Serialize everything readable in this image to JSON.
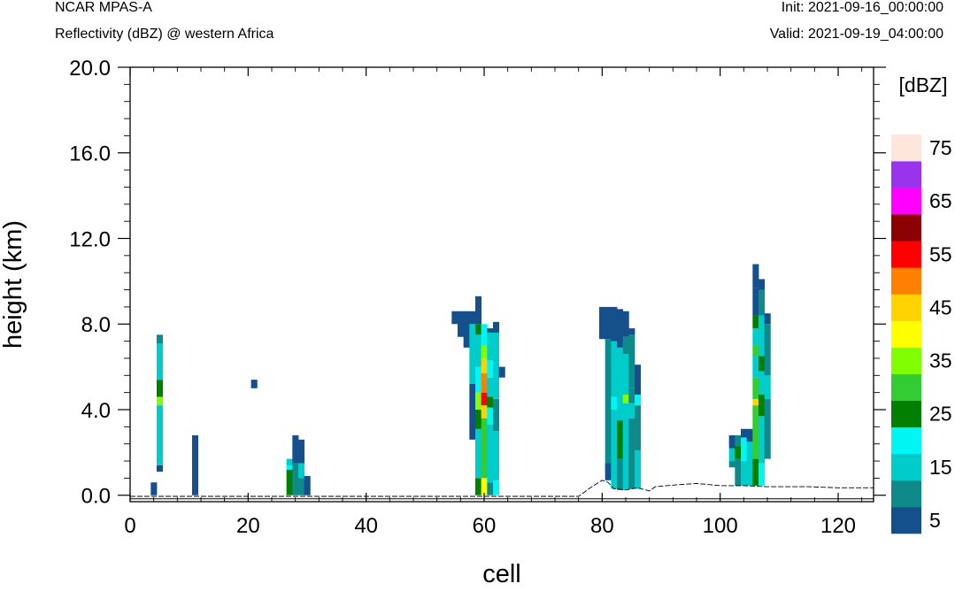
{
  "header": {
    "model": "NCAR MPAS-A",
    "field": "Reflectivity (dBZ) @ western Africa",
    "init": "Init: 2021-09-16_00:00:00",
    "valid": "Valid: 2021-09-19_04:00:00"
  },
  "chart_data": {
    "type": "heatmap",
    "title": "Reflectivity (dBZ) @ western Africa",
    "xlabel": "cell",
    "ylabel": "height (km)",
    "xlim": [
      0,
      126
    ],
    "ylim": [
      -0.3,
      20.0
    ],
    "xticks": [
      0,
      20,
      40,
      60,
      80,
      100,
      120
    ],
    "yticks": [
      0.0,
      4.0,
      8.0,
      12.0,
      16.0,
      20.0
    ],
    "ytick_labels": [
      "0.0",
      "4.0",
      "8.0",
      "12.0",
      "16.0",
      "20.0"
    ],
    "colorbar": {
      "unit_label": "[dBZ]",
      "levels": [
        5,
        10,
        15,
        20,
        25,
        30,
        35,
        40,
        45,
        50,
        55,
        60,
        65,
        70,
        75
      ],
      "labels": [
        "5",
        "15",
        "25",
        "35",
        "45",
        "55",
        "65",
        "75"
      ],
      "colors": [
        "#16508c",
        "#0e8a8a",
        "#00cccc",
        "#00f5f5",
        "#007f00",
        "#33cc33",
        "#80ff00",
        "#ffff00",
        "#ffd200",
        "#ff8000",
        "#ff0000",
        "#8b0000",
        "#ff00ff",
        "#9933ee",
        "#ffe6dc"
      ]
    },
    "terrain_km": [
      [
        0,
        -0.05
      ],
      [
        76,
        -0.05
      ],
      [
        78,
        0.35
      ],
      [
        80,
        0.7
      ],
      [
        81,
        0.6
      ],
      [
        82,
        0.3
      ],
      [
        84,
        0.25
      ],
      [
        86,
        0.35
      ],
      [
        88,
        0.2
      ],
      [
        89,
        0.4
      ],
      [
        93,
        0.5
      ],
      [
        96,
        0.55
      ],
      [
        100,
        0.45
      ],
      [
        104,
        0.45
      ],
      [
        108,
        0.4
      ],
      [
        115,
        0.4
      ],
      [
        120,
        0.35
      ],
      [
        126,
        0.35
      ]
    ],
    "columns": [
      {
        "cell": 4,
        "cells": [
          [
            0.0,
            0.6,
            5
          ]
        ]
      },
      {
        "cell": 5,
        "cells": [
          [
            1.1,
            1.4,
            5
          ],
          [
            1.4,
            4.2,
            15
          ],
          [
            4.2,
            4.6,
            35
          ],
          [
            4.6,
            5.4,
            25
          ],
          [
            5.4,
            7.1,
            15
          ],
          [
            7.1,
            7.5,
            10
          ]
        ]
      },
      {
        "cell": 11,
        "cells": [
          [
            0.0,
            2.8,
            5
          ]
        ]
      },
      {
        "cell": 21,
        "cells": [
          [
            5.0,
            5.4,
            5
          ]
        ]
      },
      {
        "cell": 27,
        "cells": [
          [
            0.0,
            1.2,
            25
          ],
          [
            1.2,
            1.4,
            20
          ],
          [
            1.4,
            1.7,
            15
          ]
        ]
      },
      {
        "cell": 28,
        "cells": [
          [
            0.0,
            1.5,
            10
          ],
          [
            1.5,
            2.8,
            5
          ]
        ]
      },
      {
        "cell": 29,
        "cells": [
          [
            0.0,
            0.8,
            10
          ],
          [
            0.8,
            1.5,
            15
          ],
          [
            1.5,
            2.6,
            5
          ]
        ]
      },
      {
        "cell": 30,
        "cells": [
          [
            0.0,
            0.9,
            5
          ]
        ]
      },
      {
        "cell": 55,
        "cells": [
          [
            8.0,
            8.6,
            5
          ]
        ]
      },
      {
        "cell": 56,
        "cells": [
          [
            7.4,
            8.6,
            5
          ]
        ]
      },
      {
        "cell": 57,
        "cells": [
          [
            6.9,
            8.6,
            5
          ]
        ]
      },
      {
        "cell": 58,
        "cells": [
          [
            2.6,
            5.2,
            5
          ],
          [
            5.2,
            8.0,
            15
          ],
          [
            8.0,
            8.6,
            5
          ]
        ]
      },
      {
        "cell": 59,
        "cells": [
          [
            0.0,
            0.8,
            25
          ],
          [
            0.8,
            3.1,
            15
          ],
          [
            3.1,
            4.0,
            25
          ],
          [
            4.0,
            4.8,
            35
          ],
          [
            4.8,
            6.0,
            20
          ],
          [
            6.0,
            7.5,
            15
          ],
          [
            7.5,
            8.0,
            25
          ],
          [
            8.0,
            9.3,
            5
          ]
        ]
      },
      {
        "cell": 60,
        "cells": [
          [
            0.0,
            0.8,
            40
          ],
          [
            0.8,
            3.6,
            30
          ],
          [
            3.6,
            4.2,
            45
          ],
          [
            4.2,
            4.8,
            55
          ],
          [
            4.8,
            5.7,
            50
          ],
          [
            5.7,
            6.4,
            45
          ],
          [
            6.4,
            7.0,
            35
          ],
          [
            7.0,
            8.0,
            20
          ]
        ]
      },
      {
        "cell": 61,
        "cells": [
          [
            0.0,
            0.6,
            10
          ],
          [
            0.6,
            3.3,
            15
          ],
          [
            3.3,
            4.1,
            20
          ],
          [
            4.1,
            4.6,
            25
          ],
          [
            4.6,
            5.5,
            15
          ],
          [
            5.5,
            6.3,
            20
          ],
          [
            6.3,
            7.6,
            15
          ],
          [
            7.6,
            7.8,
            5
          ]
        ]
      },
      {
        "cell": 62,
        "cells": [
          [
            0.0,
            0.7,
            20
          ],
          [
            0.7,
            3.0,
            15
          ],
          [
            3.0,
            4.5,
            10
          ],
          [
            4.5,
            7.6,
            15
          ],
          [
            7.6,
            8.1,
            5
          ]
        ]
      },
      {
        "cell": 63,
        "cells": [
          [
            5.5,
            6.0,
            5
          ]
        ]
      },
      {
        "cell": 80,
        "cells": [
          [
            7.3,
            8.8,
            5
          ]
        ]
      },
      {
        "cell": 81,
        "cells": [
          [
            0.7,
            1.5,
            5
          ],
          [
            1.5,
            7.3,
            10
          ],
          [
            7.3,
            8.8,
            5
          ]
        ]
      },
      {
        "cell": 82,
        "cells": [
          [
            0.3,
            4.0,
            15
          ],
          [
            4.0,
            4.6,
            20
          ],
          [
            4.6,
            7.2,
            15
          ],
          [
            7.2,
            8.8,
            5
          ]
        ]
      },
      {
        "cell": 83,
        "cells": [
          [
            0.25,
            1.7,
            10
          ],
          [
            1.7,
            3.5,
            25
          ],
          [
            3.5,
            6.9,
            15
          ],
          [
            6.9,
            8.7,
            5
          ]
        ]
      },
      {
        "cell": 84,
        "cells": [
          [
            0.25,
            4.3,
            15
          ],
          [
            4.3,
            4.7,
            35
          ],
          [
            4.7,
            6.6,
            15
          ],
          [
            6.6,
            7.4,
            10
          ],
          [
            7.4,
            8.6,
            5
          ]
        ]
      },
      {
        "cell": 85,
        "cells": [
          [
            0.3,
            3.6,
            10
          ],
          [
            3.6,
            4.3,
            15
          ],
          [
            4.3,
            5.0,
            10
          ],
          [
            5.0,
            7.5,
            10
          ],
          [
            7.5,
            7.8,
            5
          ]
        ]
      },
      {
        "cell": 86,
        "cells": [
          [
            0.3,
            2.1,
            15
          ],
          [
            2.1,
            4.2,
            10
          ],
          [
            4.2,
            4.7,
            20
          ],
          [
            4.7,
            6.1,
            5
          ]
        ]
      },
      {
        "cell": 102,
        "cells": [
          [
            1.3,
            1.6,
            10
          ],
          [
            1.6,
            2.2,
            15
          ],
          [
            2.2,
            2.8,
            5
          ]
        ]
      },
      {
        "cell": 103,
        "cells": [
          [
            0.45,
            1.7,
            10
          ],
          [
            1.7,
            2.3,
            25
          ],
          [
            2.3,
            2.8,
            10
          ]
        ]
      },
      {
        "cell": 104,
        "cells": [
          [
            0.45,
            1.6,
            15
          ],
          [
            1.6,
            2.7,
            20
          ],
          [
            2.7,
            3.1,
            5
          ]
        ]
      },
      {
        "cell": 105,
        "cells": [
          [
            0.45,
            2.5,
            15
          ],
          [
            2.5,
            3.1,
            5
          ]
        ]
      },
      {
        "cell": 106,
        "cells": [
          [
            0.45,
            1.7,
            25
          ],
          [
            1.7,
            3.4,
            30
          ],
          [
            3.4,
            4.2,
            30
          ],
          [
            4.2,
            4.5,
            45
          ],
          [
            4.5,
            5.5,
            30
          ],
          [
            5.5,
            6.5,
            15
          ],
          [
            6.5,
            7.0,
            30
          ],
          [
            7.0,
            7.8,
            15
          ],
          [
            7.8,
            8.4,
            25
          ],
          [
            8.4,
            9.7,
            5
          ],
          [
            9.7,
            10.8,
            5
          ]
        ]
      },
      {
        "cell": 107,
        "cells": [
          [
            0.45,
            1.5,
            20
          ],
          [
            1.5,
            3.7,
            15
          ],
          [
            3.7,
            4.7,
            25
          ],
          [
            4.7,
            5.8,
            15
          ],
          [
            5.8,
            6.5,
            25
          ],
          [
            6.5,
            8.4,
            15
          ],
          [
            8.4,
            9.6,
            10
          ],
          [
            9.6,
            10.1,
            5
          ]
        ]
      },
      {
        "cell": 108,
        "cells": [
          [
            1.7,
            4.5,
            10
          ],
          [
            4.5,
            5.6,
            15
          ],
          [
            5.6,
            8.0,
            10
          ],
          [
            8.0,
            8.5,
            5
          ]
        ]
      }
    ]
  }
}
